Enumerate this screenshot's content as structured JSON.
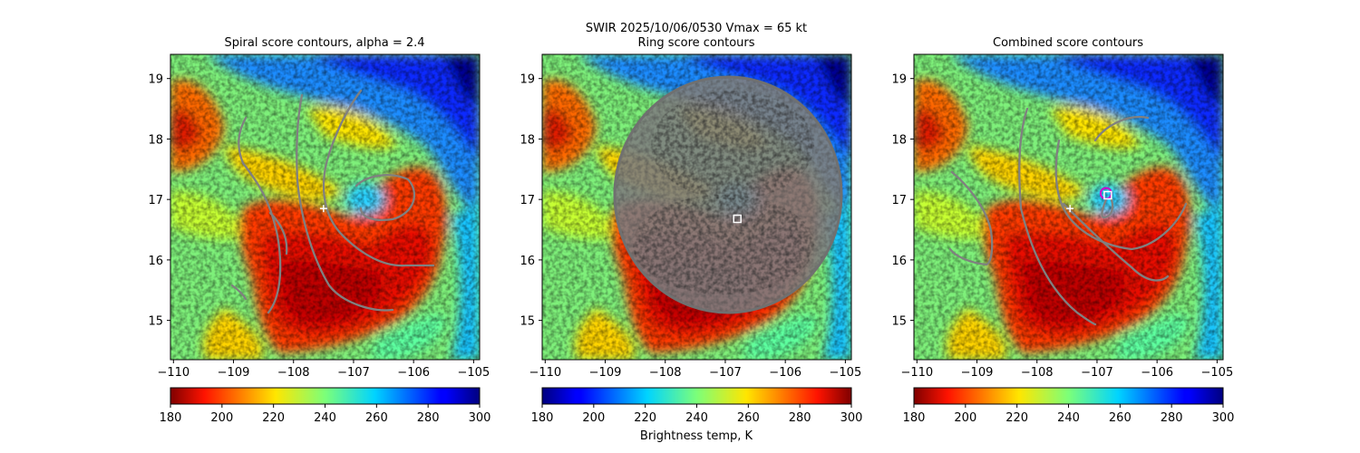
{
  "figure": {
    "suptitle_line1": "SWIR  2025/10/06/0530    Vmax = 65 kt",
    "colorbar_label": "Brightness temp, K"
  },
  "chart_data": [
    {
      "type": "heatmap",
      "title": "Spiral score contours, alpha =  2.4",
      "x_ticks": [
        "−110",
        "−109",
        "−108",
        "−107",
        "−106",
        "−105"
      ],
      "y_ticks": [
        "15",
        "16",
        "17",
        "18",
        "19"
      ],
      "xlim": [
        -110.05,
        -104.9
      ],
      "ylim": [
        14.35,
        19.4
      ],
      "colorbar": {
        "cmap": "jet_r",
        "range": [
          180,
          300
        ],
        "ticks": [
          "180",
          "200",
          "220",
          "240",
          "260",
          "280",
          "300"
        ]
      },
      "markers": [
        {
          "kind": "plus",
          "color": "#ffffff",
          "lon": -107.5,
          "lat": 16.85
        }
      ],
      "contour_color": "#808080"
    },
    {
      "type": "heatmap",
      "title": "Ring score contours",
      "x_ticks": [
        "−110",
        "−109",
        "−108",
        "−107",
        "−106",
        "−105"
      ],
      "y_ticks": [
        "15",
        "16",
        "17",
        "18",
        "19"
      ],
      "xlim": [
        -110.05,
        -104.9
      ],
      "ylim": [
        14.35,
        19.4
      ],
      "colorbar": {
        "cmap": "jet",
        "range": [
          180,
          300
        ],
        "ticks": [
          "180",
          "200",
          "220",
          "240",
          "260",
          "280",
          "300"
        ]
      },
      "markers": [
        {
          "kind": "square",
          "color": "#ffffff",
          "lon": -106.8,
          "lat": 16.68
        }
      ],
      "contour_color": "#808080"
    },
    {
      "type": "heatmap",
      "title": "Combined score contours",
      "x_ticks": [
        "−110",
        "−109",
        "−108",
        "−107",
        "−106",
        "−105"
      ],
      "y_ticks": [
        "15",
        "16",
        "17",
        "18",
        "19"
      ],
      "xlim": [
        -110.05,
        -104.9
      ],
      "ylim": [
        14.35,
        19.4
      ],
      "colorbar": {
        "cmap": "jet_r",
        "range": [
          180,
          300
        ],
        "ticks": [
          "180",
          "200",
          "220",
          "240",
          "260",
          "280",
          "300"
        ]
      },
      "markers": [
        {
          "kind": "plus",
          "color": "#ffffff",
          "lon": -107.45,
          "lat": 16.85
        },
        {
          "kind": "circle",
          "color": "#cc00cc",
          "lon": -106.85,
          "lat": 17.1
        },
        {
          "kind": "square",
          "color": "#ffffff",
          "lon": -106.82,
          "lat": 17.07
        }
      ],
      "contour_color": "#808080"
    }
  ]
}
